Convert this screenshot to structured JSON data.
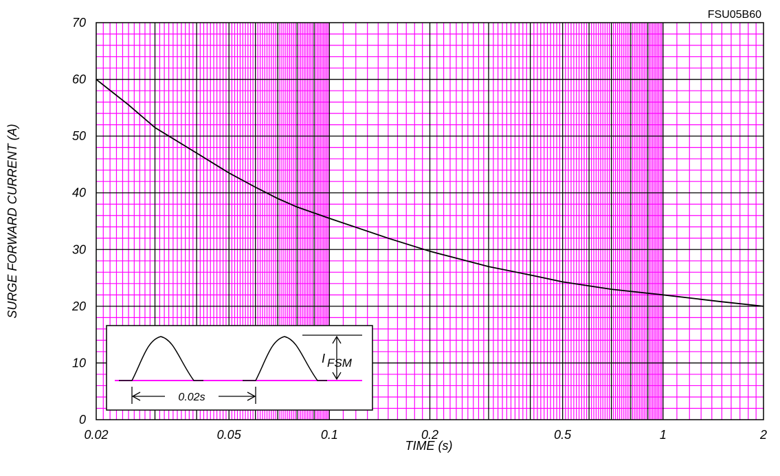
{
  "chart_data": {
    "type": "line",
    "title": "FSU05B60",
    "xlabel": "TIME (s)",
    "ylabel": "SURGE FORWARD CURRENT (A)",
    "xscale": "log",
    "xlim": [
      0.02,
      2
    ],
    "ylim": [
      0,
      70
    ],
    "grid": true,
    "x_ticks": [
      {
        "value": 0.02,
        "label": "0.02"
      },
      {
        "value": 0.05,
        "label": "0.05"
      },
      {
        "value": 0.1,
        "label": "0.1"
      },
      {
        "value": 0.2,
        "label": "0.2"
      },
      {
        "value": 0.5,
        "label": "0.5"
      },
      {
        "value": 1,
        "label": "1"
      },
      {
        "value": 2,
        "label": "2"
      }
    ],
    "y_ticks": [
      {
        "value": 0,
        "label": "0"
      },
      {
        "value": 10,
        "label": "10"
      },
      {
        "value": 20,
        "label": "20"
      },
      {
        "value": 30,
        "label": "30"
      },
      {
        "value": 40,
        "label": "40"
      },
      {
        "value": 50,
        "label": "50"
      },
      {
        "value": 60,
        "label": "60"
      },
      {
        "value": 70,
        "label": "70"
      }
    ],
    "series": [
      {
        "color": "#000000",
        "x": [
          0.02,
          0.025,
          0.03,
          0.04,
          0.05,
          0.06,
          0.07,
          0.08,
          0.1,
          0.15,
          0.2,
          0.3,
          0.4,
          0.5,
          0.7,
          1,
          1.5,
          2
        ],
        "y": [
          60,
          55.5,
          51.5,
          47,
          43.5,
          41,
          39,
          37.5,
          35.5,
          32,
          29.7,
          27,
          25.5,
          24.3,
          23,
          22,
          20.8,
          20
        ]
      }
    ],
    "inset": {
      "period_label": "0.02s",
      "current_label": "I",
      "current_subscript": "FSM"
    },
    "colors": {
      "minor_grid": "#ff00ff",
      "major_grid": "#000000",
      "curve": "#000000"
    }
  }
}
